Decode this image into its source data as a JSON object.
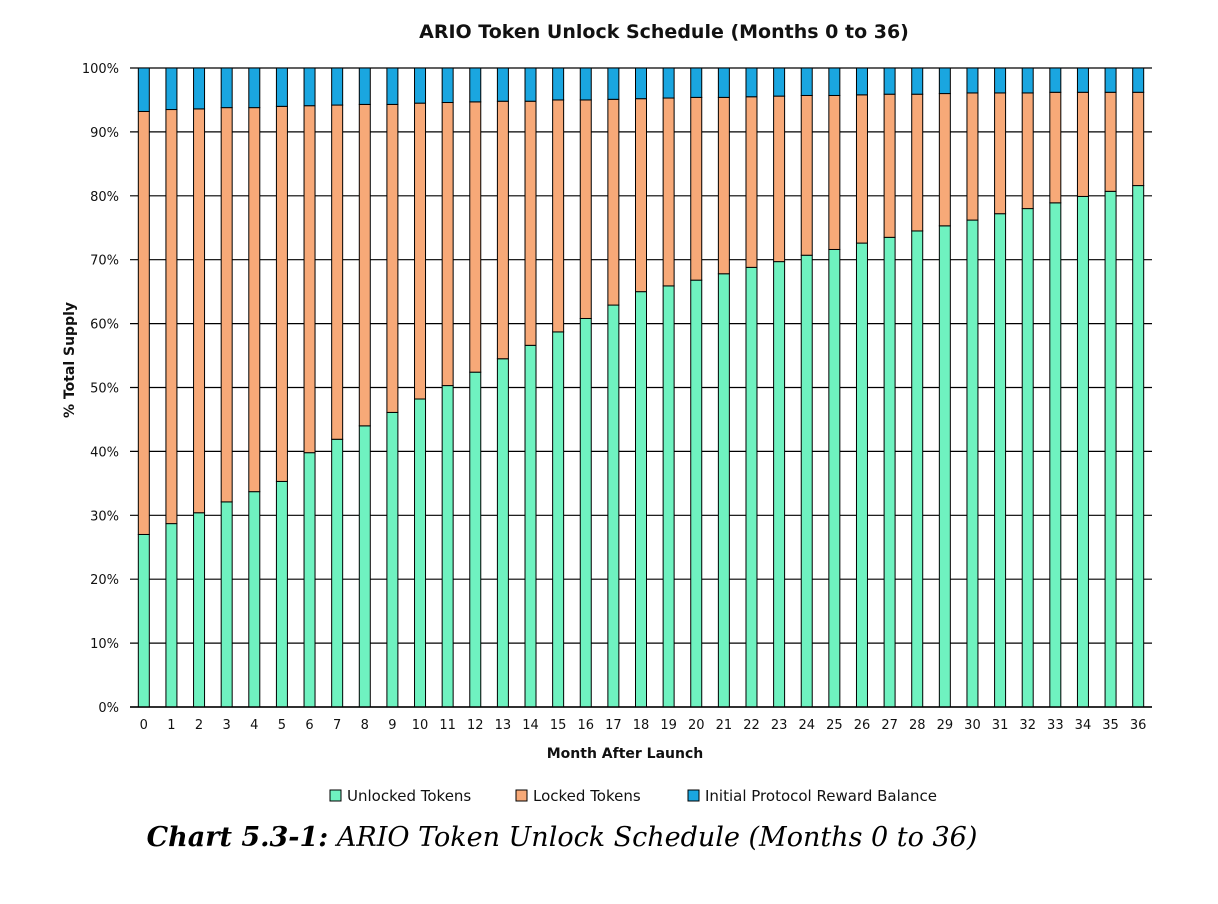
{
  "caption": {
    "label": "Chart 5.3-1:",
    "text": " ARIO Token Unlock Schedule (Months 0 to 36)"
  },
  "chart_data": {
    "type": "bar",
    "stacked": true,
    "title": "ARIO Token Unlock Schedule (Months 0 to 36)",
    "xlabel": "Month After Launch",
    "ylabel": "% Total Supply",
    "ylim": [
      0,
      100
    ],
    "yticks": [
      "0%",
      "10%",
      "20%",
      "30%",
      "40%",
      "50%",
      "60%",
      "70%",
      "80%",
      "90%",
      "100%"
    ],
    "grid": true,
    "legend_position": "bottom",
    "categories": [
      "0",
      "1",
      "2",
      "3",
      "4",
      "5",
      "6",
      "7",
      "8",
      "9",
      "10",
      "11",
      "12",
      "13",
      "14",
      "15",
      "16",
      "17",
      "18",
      "19",
      "20",
      "21",
      "22",
      "23",
      "24",
      "25",
      "26",
      "27",
      "28",
      "29",
      "30",
      "31",
      "32",
      "33",
      "34",
      "35",
      "36"
    ],
    "series": [
      {
        "name": "Unlocked Tokens",
        "color": "#6ff2c0",
        "values": [
          27.0,
          28.7,
          30.4,
          32.1,
          33.7,
          35.3,
          39.8,
          41.9,
          44.0,
          46.1,
          48.2,
          50.3,
          52.4,
          54.5,
          56.6,
          58.7,
          60.8,
          62.9,
          65.0,
          65.9,
          66.8,
          67.8,
          68.8,
          69.7,
          70.7,
          71.6,
          72.6,
          73.5,
          74.5,
          75.3,
          76.2,
          77.2,
          78.0,
          78.9,
          79.9,
          80.7,
          81.6
        ]
      },
      {
        "name": "Locked Tokens",
        "color": "#f7a978",
        "values": [
          66.2,
          64.8,
          63.2,
          61.7,
          60.1,
          58.7,
          54.3,
          52.3,
          50.3,
          48.2,
          46.3,
          44.3,
          42.3,
          40.3,
          38.2,
          36.3,
          34.2,
          32.2,
          30.2,
          29.4,
          28.6,
          27.6,
          26.7,
          25.9,
          25.0,
          24.1,
          23.2,
          22.4,
          21.4,
          20.7,
          19.9,
          18.9,
          18.1,
          17.3,
          16.3,
          15.5,
          14.6
        ]
      },
      {
        "name": "Initial Protocol Reward Balance",
        "color": "#1aa6e0",
        "values": [
          6.8,
          6.5,
          6.4,
          6.2,
          6.2,
          6.0,
          5.9,
          5.8,
          5.7,
          5.7,
          5.5,
          5.4,
          5.3,
          5.2,
          5.2,
          5.0,
          5.0,
          4.9,
          4.8,
          4.7,
          4.6,
          4.6,
          4.5,
          4.4,
          4.3,
          4.3,
          4.2,
          4.1,
          4.1,
          4.0,
          3.9,
          3.9,
          3.9,
          3.8,
          3.8,
          3.8,
          3.8
        ]
      }
    ]
  }
}
